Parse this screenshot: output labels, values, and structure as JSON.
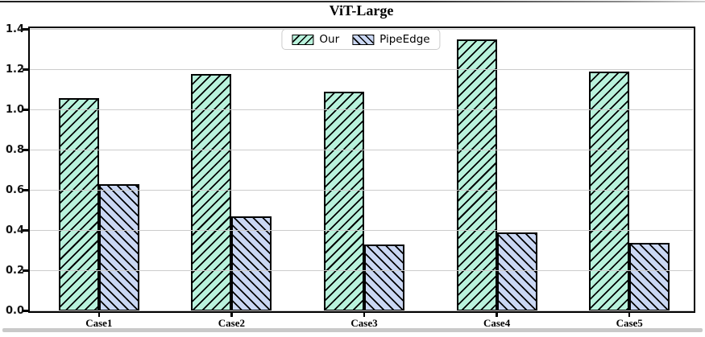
{
  "page": {
    "title": "ViT-Large"
  },
  "chart_data": {
    "type": "bar",
    "title": "ViT-Large",
    "categories": [
      "Case1",
      "Case2",
      "Case3",
      "Case4",
      "Case5"
    ],
    "series": [
      {
        "name": "Our",
        "values": [
          1.06,
          1.18,
          1.09,
          1.35,
          1.19
        ],
        "color": "#b9f2dc",
        "hatch": "/"
      },
      {
        "name": "PipeEdge",
        "values": [
          0.63,
          0.47,
          0.33,
          0.39,
          0.34
        ],
        "color": "#cad7f3",
        "hatch": "\\"
      }
    ],
    "ylim": [
      0,
      1.4
    ],
    "yticks": [
      "0.0",
      "0.2",
      "0.4",
      "0.6",
      "0.8",
      "1.0",
      "1.2",
      "1.4"
    ],
    "xlabel": "",
    "ylabel": "",
    "grid": true,
    "grid_over_bars": true,
    "legend_position": "upper center",
    "bar_edge_width": 2.5
  },
  "colors": {
    "bar_our_fill": "#b9f2dc",
    "bar_pipeedge_fill": "#cad7f3",
    "bar_edge": "#000000",
    "gridline": "#cccccc",
    "legend_border": "#cccccc",
    "axis": "#000000",
    "top_rule": "#2e2e2e",
    "bottom_rule": "#c9c9c9",
    "background": "#ffffff"
  }
}
